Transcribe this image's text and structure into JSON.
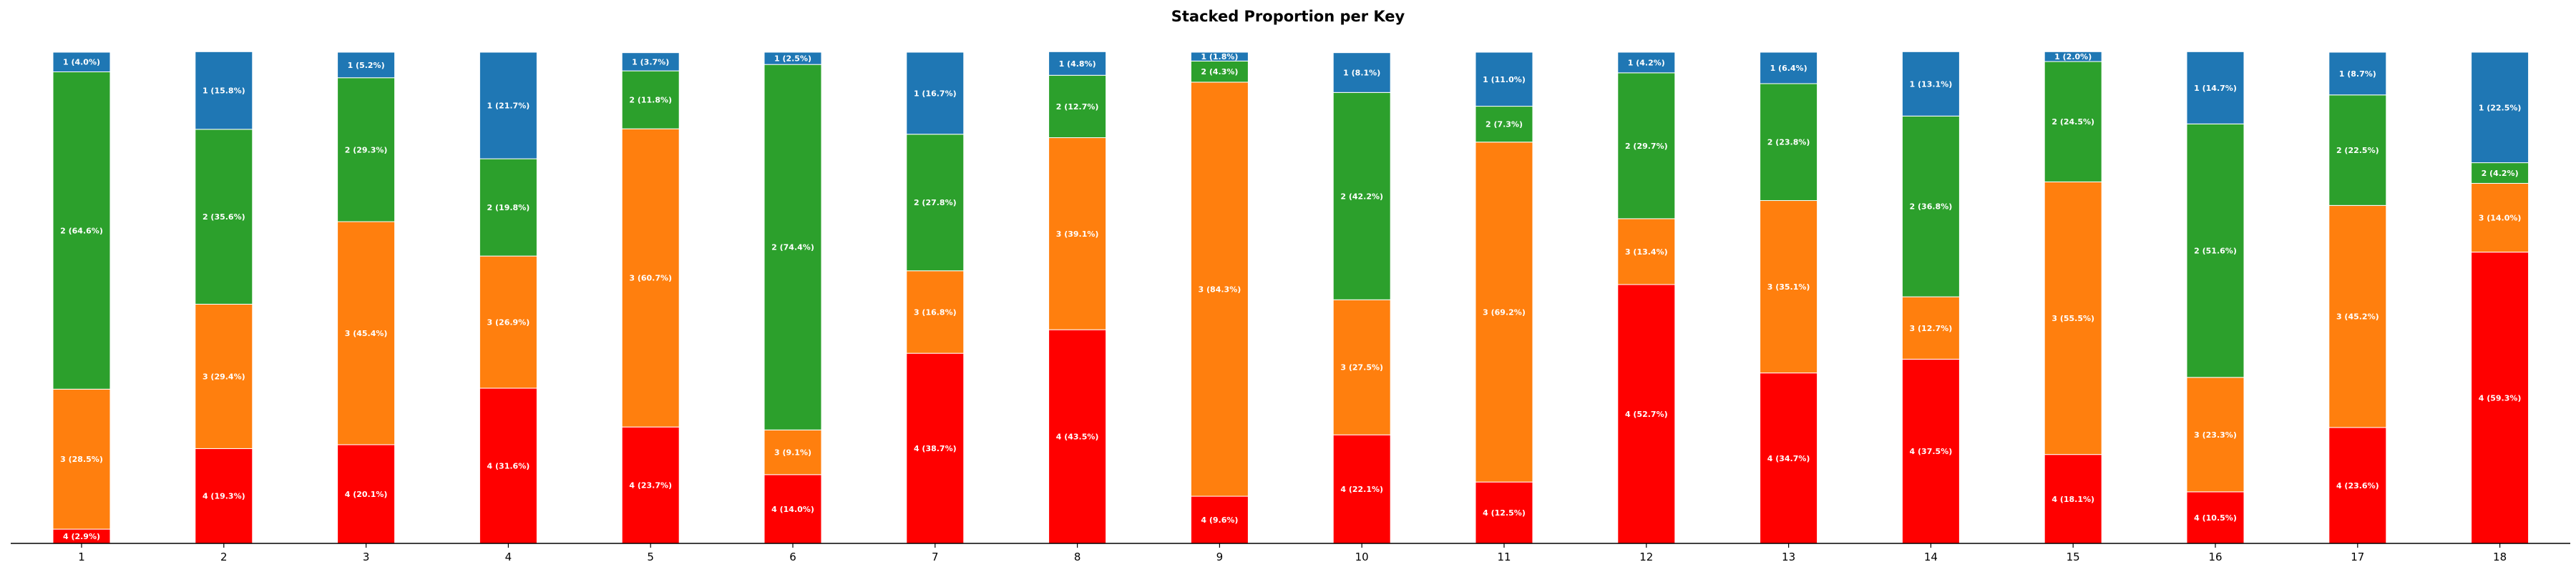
{
  "chart_data": {
    "type": "bar",
    "stacked": true,
    "title": "Stacked Proportion per Key",
    "xlabel": "",
    "ylabel": "",
    "ylim": [
      0,
      100
    ],
    "grid": false,
    "legend": "none",
    "categories": [
      "1",
      "2",
      "3",
      "4",
      "5",
      "6",
      "7",
      "8",
      "9",
      "10",
      "11",
      "12",
      "13",
      "14",
      "15",
      "16",
      "17",
      "18"
    ],
    "series": [
      {
        "name": "4",
        "color": "#ff0000",
        "values": [
          2.9,
          19.3,
          20.1,
          31.6,
          23.7,
          14.0,
          38.7,
          43.5,
          9.6,
          22.1,
          12.5,
          52.7,
          34.7,
          37.5,
          18.1,
          10.5,
          23.6,
          59.3
        ]
      },
      {
        "name": "3",
        "color": "#ff7f0e",
        "values": [
          28.5,
          29.4,
          45.4,
          26.9,
          60.7,
          9.1,
          16.8,
          39.1,
          84.3,
          27.5,
          69.2,
          13.4,
          35.1,
          12.7,
          55.5,
          23.3,
          45.2,
          14.0
        ]
      },
      {
        "name": "2",
        "color": "#2ca02c",
        "values": [
          64.6,
          35.6,
          29.3,
          19.8,
          11.8,
          74.4,
          27.8,
          12.7,
          4.3,
          42.2,
          7.3,
          29.7,
          23.8,
          36.8,
          24.5,
          51.6,
          22.5,
          4.2
        ]
      },
      {
        "name": "1",
        "color": "#1f77b4",
        "values": [
          4.0,
          15.8,
          5.2,
          21.7,
          3.7,
          2.5,
          16.7,
          4.8,
          1.8,
          8.1,
          11.0,
          4.2,
          6.4,
          13.1,
          2.0,
          14.7,
          8.7,
          22.5
        ]
      }
    ]
  }
}
